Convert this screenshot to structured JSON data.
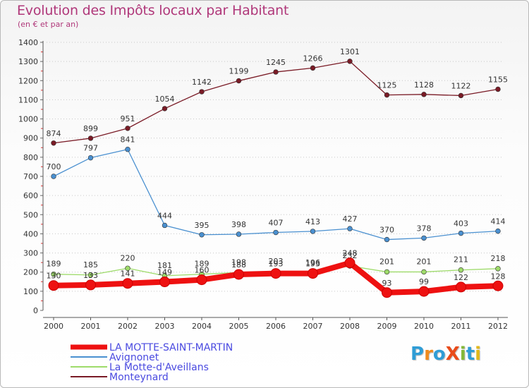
{
  "title": "Evolution des Impôts locaux par Habitant",
  "subtitle": "(en € et par an)",
  "logo": {
    "text": "ProXiti",
    "letters": [
      "P",
      "r",
      "o",
      "X",
      "i",
      "t",
      "i"
    ],
    "colors": [
      "#2f9dd6",
      "#f08a1c",
      "#2f9dd6",
      "#e94b1a",
      "#84b838",
      "#2f9dd6",
      "#e2b81a"
    ]
  },
  "chart_data": {
    "type": "line",
    "x": [
      "2000",
      "2001",
      "2002",
      "2003",
      "2004",
      "2005",
      "2006",
      "2007",
      "2008",
      "2009",
      "2010",
      "2011",
      "2012"
    ],
    "ylim": [
      0,
      1400
    ],
    "yticks": [
      0,
      100,
      200,
      300,
      400,
      500,
      600,
      700,
      800,
      900,
      1000,
      1100,
      1200,
      1300,
      1400
    ],
    "grid": "horizontal dotted",
    "legend_position": "bottom-left",
    "series": [
      {
        "name": "Monteynard",
        "color": "#7a1b26",
        "values": [
          874,
          899,
          951,
          1054,
          1142,
          1199,
          1245,
          1266,
          1301,
          1125,
          1128,
          1122,
          1155
        ]
      },
      {
        "name": "Avignonet",
        "color": "#4a90d0",
        "values": [
          700,
          797,
          841,
          444,
          395,
          398,
          407,
          413,
          427,
          370,
          378,
          403,
          414
        ]
      },
      {
        "name": "La Motte-d'Aveillans",
        "color": "#9edb6a",
        "values": [
          189,
          185,
          220,
          181,
          189,
          198,
          203,
          196,
          232,
          201,
          201,
          211,
          218
        ]
      },
      {
        "name": "LA MOTTE-SAINT-MARTIN",
        "color": "#ee1111",
        "values": [
          130,
          133,
          141,
          149,
          160,
          188,
          193,
          193,
          248,
          93,
          99,
          122,
          128
        ]
      }
    ],
    "legend": [
      "LA MOTTE-SAINT-MARTIN",
      "Avignonet",
      "La Motte-d'Aveillans",
      "Monteynard"
    ]
  }
}
